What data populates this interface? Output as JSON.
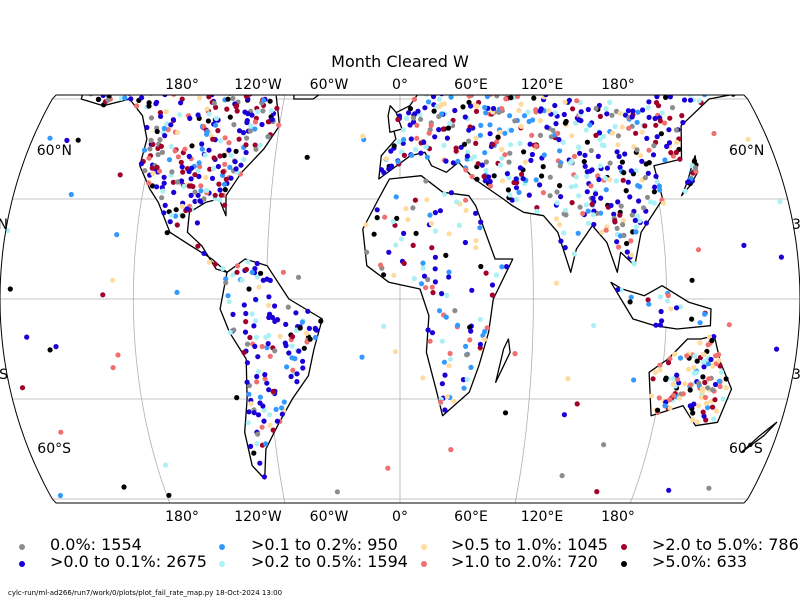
{
  "title": "Month Cleared W",
  "axis_labels": {
    "lon_top": [
      "180°",
      "120°W",
      "60°W",
      "0°",
      "60°E",
      "120°E",
      "180°"
    ],
    "lon_bottom": [
      "180°",
      "120°W",
      "60°W",
      "0°",
      "60°E",
      "120°E",
      "180°"
    ],
    "lat_left": [
      "60°N",
      "N",
      "S",
      "60°S"
    ],
    "lat_right": [
      "60°N",
      "3",
      "3",
      "60°S"
    ]
  },
  "colors": {
    "gray": "#8c8c8c",
    "navy": "#1a00d6",
    "sky": "#3399ff",
    "cyan": "#aaf0f5",
    "wheat": "#ffdba0",
    "salmon": "#f07070",
    "darkred": "#a0002a",
    "black": "#000000",
    "land": "#ffffff",
    "coast": "#000000",
    "grid": "#b0b0b0"
  },
  "legend": [
    {
      "label": "0.0%: 1554",
      "color": "#8c8c8c"
    },
    {
      "label": ">0.0 to 0.1%: 2675",
      "color": "#1a00d6"
    },
    {
      "label": ">0.1 to 0.2%: 950",
      "color": "#3399ff"
    },
    {
      "label": ">0.2 to 0.5%: 1594",
      "color": "#aaf0f5"
    },
    {
      "label": ">0.5 to 1.0%: 1045",
      "color": "#ffdba0"
    },
    {
      "label": ">1.0 to 2.0%: 720",
      "color": "#f07070"
    },
    {
      "label": ">2.0 to 5.0%: 786",
      "color": "#a0002a"
    },
    {
      "label": ">5.0%: 633",
      "color": "#000000"
    }
  ],
  "footer": "cylc-run/ml-ad266/run7/work/0/plots/plot_fail_rate_map.py   18-Oct-2024 13:00"
}
